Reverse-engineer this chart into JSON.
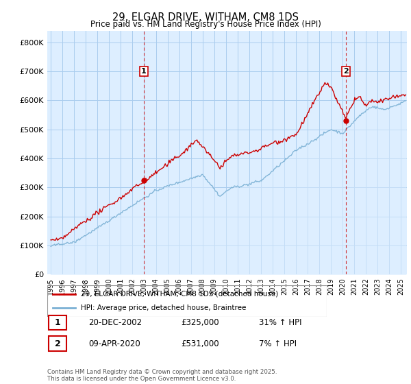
{
  "title": "29, ELGAR DRIVE, WITHAM, CM8 1DS",
  "subtitle": "Price paid vs. HM Land Registry's House Price Index (HPI)",
  "legend_line1": "29, ELGAR DRIVE, WITHAM, CM8 1DS (detached house)",
  "legend_line2": "HPI: Average price, detached house, Braintree",
  "footer": "Contains HM Land Registry data © Crown copyright and database right 2025.\nThis data is licensed under the Open Government Licence v3.0.",
  "red_color": "#cc0000",
  "blue_color": "#7ab0d4",
  "blue_fill": "#ddeeff",
  "dashed_red": "#cc0000",
  "point1_label": "1",
  "point1_date": "20-DEC-2002",
  "point1_price": "£325,000",
  "point1_hpi": "31% ↑ HPI",
  "point1_year": 2002.97,
  "point1_value": 325000,
  "point2_label": "2",
  "point2_date": "09-APR-2020",
  "point2_price": "£531,000",
  "point2_hpi": "7% ↑ HPI",
  "point2_year": 2020.27,
  "point2_value": 531000,
  "ylim": [
    0,
    840000
  ],
  "yticks": [
    0,
    100000,
    200000,
    300000,
    400000,
    500000,
    600000,
    700000,
    800000
  ],
  "ytick_labels": [
    "£0",
    "£100K",
    "£200K",
    "£300K",
    "£400K",
    "£500K",
    "£600K",
    "£700K",
    "£800K"
  ],
  "xlim_start": 1994.7,
  "xlim_end": 2025.5,
  "xticks": [
    1995,
    1996,
    1997,
    1998,
    1999,
    2000,
    2001,
    2002,
    2003,
    2004,
    2005,
    2006,
    2007,
    2008,
    2009,
    2010,
    2011,
    2012,
    2013,
    2014,
    2015,
    2016,
    2017,
    2018,
    2019,
    2020,
    2021,
    2022,
    2023,
    2024,
    2025
  ],
  "background_color": "#ddeeff",
  "plot_bg": "#ddeeff",
  "grid_color": "#aaccee"
}
